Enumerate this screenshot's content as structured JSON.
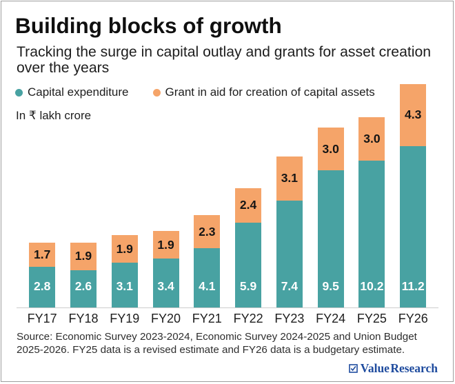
{
  "header": {
    "title": "Building blocks of growth",
    "subtitle": "Tracking the surge in capital outlay and grants for asset creation over the years"
  },
  "legend": [
    {
      "label": "Capital expenditure",
      "color": "#48a2a2"
    },
    {
      "label": "Grant in aid for creation of capital assets",
      "color": "#f5a469"
    }
  ],
  "unit_note": "In ₹ lakh crore",
  "chart_data": {
    "type": "bar",
    "stacked": true,
    "title": "Building blocks of growth",
    "xlabel": "",
    "ylabel": "In ₹ lakh crore",
    "categories": [
      "FY17",
      "FY18",
      "FY19",
      "FY20",
      "FY21",
      "FY22",
      "FY23",
      "FY24",
      "FY25",
      "FY26"
    ],
    "series": [
      {
        "name": "Capital expenditure",
        "color": "#48a2a2",
        "label_color": "#ffffff",
        "values": [
          2.8,
          2.6,
          3.1,
          3.4,
          4.1,
          5.9,
          7.4,
          9.5,
          10.2,
          11.2
        ]
      },
      {
        "name": "Grant in aid for creation of capital assets",
        "color": "#f5a469",
        "label_color": "#151515",
        "values": [
          1.7,
          1.9,
          1.9,
          1.9,
          2.3,
          2.4,
          3.1,
          3.0,
          3.0,
          4.3
        ]
      }
    ],
    "ylim": [
      0,
      15.5
    ],
    "decimals": 1,
    "grid": false,
    "legend_position": "top"
  },
  "source": {
    "text": "Source: Economic Survey 2023-2024, Economic Survey 2024-2025 and Union Budget 2025-2026. FY25 data is a revised estimate and FY26 data is a budgetary estimate."
  },
  "brand": {
    "name": "Value Research",
    "color": "#1e4b9e",
    "icon": "checkbox-check-icon"
  }
}
